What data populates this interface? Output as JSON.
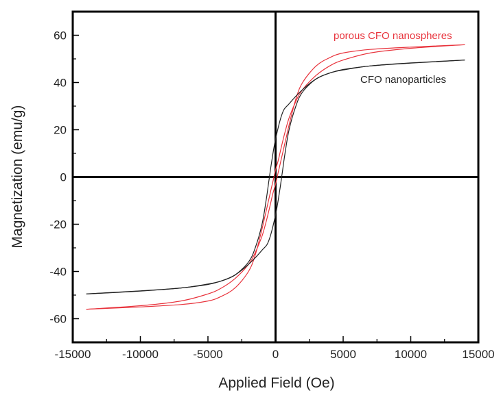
{
  "chart_data": {
    "type": "line",
    "title": "",
    "xlabel": "Applied Field (Oe)",
    "ylabel": "Magnetization (emu/g)",
    "xlim": [
      -15000,
      15000
    ],
    "ylim": [
      -70,
      70
    ],
    "xticks": [
      -15000,
      -10000,
      -5000,
      0,
      5000,
      10000,
      15000
    ],
    "xtick_labels": [
      "-15000",
      "-10000",
      "-5000",
      "0",
      "5000",
      "10000",
      "15000"
    ],
    "yticks": [
      -60,
      -40,
      -20,
      0,
      20,
      40,
      60
    ],
    "ytick_labels": [
      "-60",
      "-40",
      "-20",
      "0",
      "20",
      "40",
      "60"
    ],
    "grid": false,
    "annotations": [
      {
        "text": "porous CFO nanospheres",
        "color": "#e8333c"
      },
      {
        "text": "CFO nanoparticles",
        "color": "#222222"
      }
    ],
    "series": [
      {
        "name": "porous CFO nanospheres",
        "color": "#e8333c",
        "x_upper": [
          14000,
          10000,
          7000,
          5000,
          4000,
          3000,
          2000,
          1500,
          1000,
          700,
          400,
          200,
          0,
          -200,
          -400,
          -600,
          -800,
          -1000,
          -1500,
          -2000,
          -3000,
          -4000,
          -5000,
          -7000,
          -10000,
          -14000
        ],
        "y_upper": [
          56,
          54.5,
          52.5,
          49.5,
          47,
          43,
          37,
          32,
          25,
          19,
          12,
          7,
          3,
          -2,
          -7,
          -12,
          -17,
          -22,
          -33,
          -40,
          -47,
          -50.5,
          -52.5,
          -54,
          -55,
          -56
        ],
        "x_lower": [
          -14000,
          -10000,
          -7000,
          -5000,
          -4000,
          -3000,
          -2000,
          -1500,
          -1000,
          -700,
          -400,
          -200,
          0,
          200,
          400,
          600,
          800,
          1000,
          1500,
          2000,
          3000,
          4000,
          5000,
          7000,
          10000,
          14000
        ],
        "y_lower": [
          -56,
          -54.5,
          -52.5,
          -49.5,
          -47,
          -43,
          -37,
          -32,
          -25,
          -19,
          -12,
          -7,
          -3,
          2,
          7,
          12,
          17,
          22,
          33,
          40,
          47,
          50.5,
          52.5,
          54,
          55,
          56
        ]
      },
      {
        "name": "CFO nanoparticles",
        "color": "#222222",
        "x_upper": [
          14000,
          10000,
          7000,
          5000,
          4000,
          3000,
          2000,
          1000,
          500,
          0,
          -300,
          -500,
          -700,
          -1000,
          -1500,
          -2000,
          -3000,
          -4000,
          -5000,
          -7000,
          -10000,
          -14000
        ],
        "y_upper": [
          49.5,
          48.2,
          47,
          45.3,
          44,
          41.5,
          37,
          31,
          27,
          16,
          6,
          -2,
          -10,
          -20,
          -30,
          -36,
          -41.5,
          -44,
          -45.5,
          -47,
          -48.3,
          -49.5
        ],
        "x_lower": [
          -14000,
          -10000,
          -7000,
          -5000,
          -4000,
          -3000,
          -2000,
          -1000,
          -500,
          0,
          300,
          500,
          700,
          1000,
          1500,
          2000,
          3000,
          4000,
          5000,
          7000,
          10000,
          14000
        ],
        "y_lower": [
          -49.5,
          -48.2,
          -47,
          -45.3,
          -44,
          -41.5,
          -37,
          -31,
          -27,
          -16,
          -6,
          2,
          10,
          20,
          30,
          36,
          41.5,
          44,
          45.5,
          47,
          48.3,
          49.5
        ]
      }
    ]
  }
}
